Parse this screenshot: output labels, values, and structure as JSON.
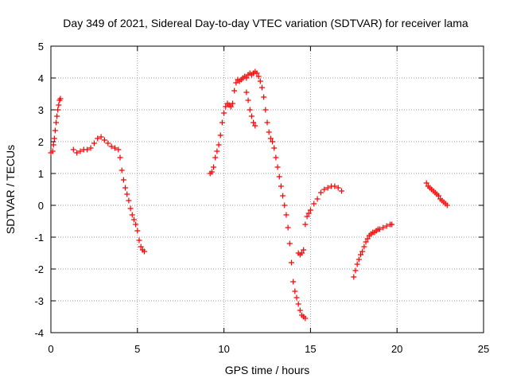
{
  "chart_data": {
    "type": "scatter",
    "title": "Day 349 of 2021, Sidereal Day-to-day VTEC variation (SDTVAR) for receiver lama",
    "xlabel": "GPS time / hours",
    "ylabel": "SDTVAR / TECUs",
    "xlim": [
      0,
      25
    ],
    "ylim": [
      -4,
      5
    ],
    "xticks": [
      "0",
      "5",
      "10",
      "15",
      "20",
      "25"
    ],
    "yticks": [
      "-4",
      "-3",
      "-2",
      "-1",
      "0",
      "1",
      "2",
      "3",
      "4",
      "5"
    ],
    "grid": true,
    "marker": "+",
    "color": "#ff0000",
    "segments": [
      {
        "x": [
          0.0,
          0.1,
          0.15,
          0.2,
          0.25,
          0.3,
          0.35,
          0.4,
          0.45,
          0.5,
          0.55
        ],
        "y": [
          1.65,
          1.7,
          1.9,
          2.1,
          2.35,
          2.6,
          2.8,
          3.0,
          3.15,
          3.3,
          3.35
        ]
      },
      {
        "x": [
          1.3,
          1.5,
          1.7,
          1.9,
          2.1,
          2.3,
          2.5,
          2.7,
          2.9,
          3.1,
          3.3,
          3.5,
          3.7,
          3.9,
          4.0,
          4.1,
          4.2,
          4.3,
          4.4,
          4.5,
          4.6,
          4.7,
          4.8,
          4.9,
          5.0,
          5.1,
          5.2,
          5.3,
          5.4
        ],
        "y": [
          1.75,
          1.65,
          1.7,
          1.75,
          1.75,
          1.8,
          1.95,
          2.1,
          2.15,
          2.05,
          1.95,
          1.85,
          1.8,
          1.75,
          1.5,
          1.1,
          0.8,
          0.55,
          0.35,
          0.15,
          -0.1,
          -0.3,
          -0.45,
          -0.6,
          -0.8,
          -1.1,
          -1.3,
          -1.4,
          -1.45
        ]
      },
      {
        "x": [
          9.2,
          9.3,
          9.4,
          9.5,
          9.6,
          9.7,
          9.8,
          9.9,
          10.0,
          10.1,
          10.2,
          10.3,
          10.4,
          10.5,
          10.6,
          10.7,
          10.8,
          10.9,
          11.0,
          11.1,
          11.2,
          11.3,
          11.4,
          11.5,
          11.6,
          11.7,
          11.8,
          11.9,
          12.0,
          12.1,
          12.2,
          12.3,
          12.4,
          12.5,
          12.6,
          12.7,
          12.8,
          12.9,
          13.0,
          13.1,
          13.2,
          13.3,
          13.4,
          13.5,
          13.6,
          13.7,
          13.8,
          13.9,
          14.0,
          14.1,
          14.2,
          14.3,
          14.4,
          14.5,
          14.6,
          14.7
        ],
        "y": [
          1.0,
          1.05,
          1.2,
          1.5,
          1.7,
          1.9,
          2.2,
          2.6,
          2.9,
          3.1,
          3.2,
          3.15,
          3.1,
          3.2,
          3.6,
          3.85,
          3.95,
          3.9,
          3.95,
          4.0,
          4.05,
          4.0,
          4.1,
          4.15,
          4.1,
          4.15,
          4.2,
          4.15,
          4.05,
          3.9,
          3.7,
          3.4,
          3.0,
          2.6,
          2.3,
          2.1,
          2.0,
          1.8,
          1.5,
          1.2,
          0.9,
          0.6,
          0.3,
          0.0,
          -0.3,
          -0.7,
          -1.2,
          -1.8,
          -2.4,
          -2.7,
          -2.9,
          -3.1,
          -3.3,
          -3.45,
          -3.5,
          -3.55
        ]
      },
      {
        "x": [
          11.3,
          11.4,
          11.5,
          11.6,
          11.7,
          11.8
        ],
        "y": [
          3.55,
          3.3,
          3.0,
          2.8,
          2.6,
          2.5
        ]
      },
      {
        "x": [
          14.3,
          14.4,
          14.5,
          14.6,
          14.7,
          14.8,
          14.9,
          15.0,
          15.2,
          15.4,
          15.6,
          15.8,
          16.0,
          16.2,
          16.4,
          16.6,
          16.8
        ],
        "y": [
          -1.5,
          -1.55,
          -1.5,
          -1.4,
          -0.6,
          -0.35,
          -0.25,
          -0.15,
          0.05,
          0.2,
          0.4,
          0.5,
          0.55,
          0.6,
          0.6,
          0.55,
          0.45
        ]
      },
      {
        "x": [
          17.5,
          17.6,
          17.7,
          17.8,
          17.9,
          18.0,
          18.1,
          18.2,
          18.3,
          18.4,
          18.5,
          18.6,
          18.7,
          18.8,
          18.9,
          19.0,
          19.2,
          19.4,
          19.6,
          19.7
        ],
        "y": [
          -2.25,
          -2.05,
          -1.85,
          -1.7,
          -1.55,
          -1.45,
          -1.3,
          -1.15,
          -1.05,
          -0.95,
          -0.9,
          -0.85,
          -0.85,
          -0.8,
          -0.75,
          -0.75,
          -0.7,
          -0.65,
          -0.6,
          -0.6
        ]
      },
      {
        "x": [
          21.7,
          21.8,
          21.9,
          22.0,
          22.1,
          22.2,
          22.3,
          22.4,
          22.5,
          22.6,
          22.7,
          22.8,
          22.9
        ],
        "y": [
          0.7,
          0.6,
          0.55,
          0.5,
          0.45,
          0.4,
          0.35,
          0.3,
          0.2,
          0.15,
          0.1,
          0.05,
          0.0
        ]
      }
    ]
  }
}
